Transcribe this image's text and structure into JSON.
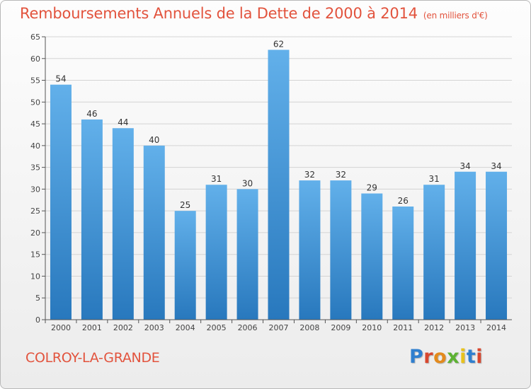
{
  "title": "Remboursements Annuels de la Dette de 2000 à 2014",
  "title_unit": "(en milliers d'€)",
  "commune": "COLROY-LA-GRANDE",
  "logo": "Proxiti",
  "colors": {
    "title": "#e2533d",
    "bar_top": "#62b0ea",
    "bar_bottom": "#2878bd",
    "grid": "#d4d4d4"
  },
  "chart_data": {
    "type": "bar",
    "title": "Remboursements Annuels de la Dette de 2000 à 2014",
    "subtitle": "(en milliers d'€)",
    "xlabel": "",
    "ylabel": "",
    "categories": [
      "2000",
      "2001",
      "2002",
      "2003",
      "2004",
      "2005",
      "2006",
      "2007",
      "2008",
      "2009",
      "2010",
      "2011",
      "2012",
      "2013",
      "2014"
    ],
    "values": [
      54,
      46,
      44,
      40,
      25,
      31,
      30,
      62,
      32,
      32,
      29,
      26,
      31,
      34,
      34
    ],
    "ylim": [
      0,
      65
    ],
    "yticks": [
      0,
      5,
      10,
      15,
      20,
      25,
      30,
      35,
      40,
      45,
      50,
      55,
      60,
      65
    ],
    "grid": true,
    "data_labels": true
  }
}
